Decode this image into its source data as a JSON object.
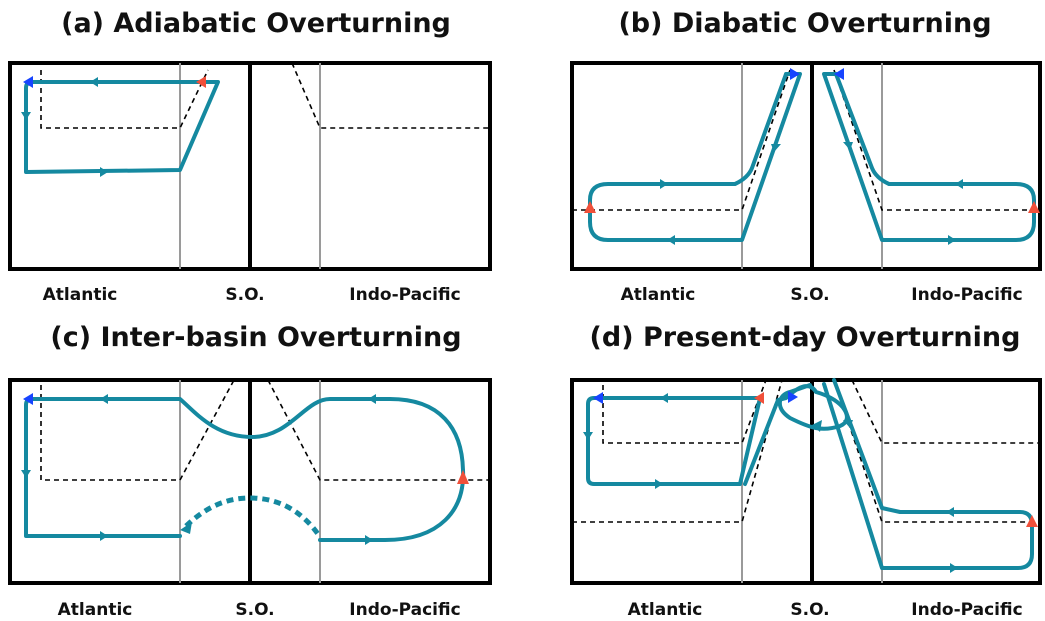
{
  "colors": {
    "circulation": "#1589a0",
    "upwelling_arrow": "#f0503a",
    "sinking_arrow": "#1744ff",
    "frame": "#000000",
    "basin_boundary": "#9a9a9a",
    "isopycnal": "#000000"
  },
  "panels": [
    {
      "id": "a",
      "title": "(a) Adiabatic Overturning",
      "labels": {
        "left": "Atlantic",
        "center": "S.O.",
        "right": "Indo-Pacific"
      }
    },
    {
      "id": "b",
      "title": "(b) Diabatic Overturning",
      "labels": {
        "left": "Atlantic",
        "center": "S.O.",
        "right": "Indo-Pacific"
      }
    },
    {
      "id": "c",
      "title": "(c) Inter-basin Overturning",
      "labels": {
        "left": "Atlantic",
        "center": "S.O.",
        "right": "Indo-Pacific"
      }
    },
    {
      "id": "d",
      "title": "(d) Present-day Overturning",
      "labels": {
        "left": "Atlantic",
        "center": "S.O.",
        "right": "Indo-Pacific"
      }
    }
  ]
}
